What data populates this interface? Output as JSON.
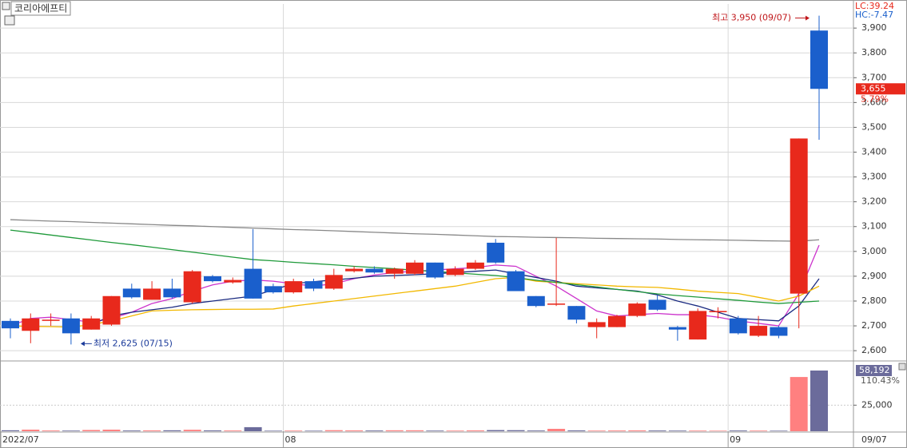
{
  "chart_data": {
    "type": "candlestick",
    "title": "코리아에프티",
    "categories": [
      "2022/07",
      null,
      null,
      null,
      null,
      null,
      null,
      null,
      null,
      null,
      null,
      null,
      null,
      null,
      "08",
      null,
      null,
      null,
      null,
      null,
      null,
      null,
      null,
      null,
      null,
      null,
      null,
      null,
      null,
      null,
      null,
      null,
      null,
      null,
      null,
      null,
      "09",
      null,
      null,
      null,
      null
    ],
    "end_date_label": "09/07",
    "open": [
      2720,
      2680,
      2720,
      2730,
      2685,
      2705,
      2850,
      2805,
      2850,
      2795,
      2900,
      2875,
      2930,
      2860,
      2835,
      2880,
      2850,
      2920,
      2930,
      2910,
      2910,
      2955,
      2905,
      2930,
      3035,
      2920,
      2820,
      2785,
      2780,
      2695,
      2695,
      2740,
      2805,
      2695,
      2645,
      2755,
      2730,
      2660,
      2695,
      2830,
      3890
    ],
    "high": [
      2730,
      2750,
      2750,
      2750,
      2740,
      2820,
      2870,
      2880,
      2890,
      2925,
      2905,
      2895,
      3090,
      2870,
      2890,
      2890,
      2930,
      2940,
      2940,
      2935,
      2965,
      2955,
      2940,
      2965,
      3050,
      2925,
      2820,
      3055,
      2780,
      2730,
      2745,
      2795,
      2825,
      2700,
      2770,
      2775,
      2740,
      2740,
      2700,
      3455,
      3950
    ],
    "low": [
      2650,
      2630,
      2700,
      2625,
      2685,
      2700,
      2810,
      2805,
      2810,
      2790,
      2875,
      2870,
      2810,
      2830,
      2830,
      2840,
      2845,
      2915,
      2910,
      2890,
      2905,
      2890,
      2900,
      2925,
      2950,
      2840,
      2775,
      2780,
      2710,
      2650,
      2695,
      2735,
      2760,
      2640,
      2645,
      2730,
      2665,
      2655,
      2650,
      2690,
      3450
    ],
    "close": [
      2690,
      2730,
      2725,
      2670,
      2730,
      2820,
      2815,
      2850,
      2815,
      2920,
      2880,
      2885,
      2810,
      2835,
      2880,
      2850,
      2905,
      2930,
      2915,
      2930,
      2955,
      2895,
      2930,
      2955,
      2955,
      2840,
      2780,
      2790,
      2725,
      2715,
      2740,
      2790,
      2765,
      2685,
      2760,
      2760,
      2670,
      2700,
      2660,
      3455,
      3655
    ],
    "up_color": "#e8291c",
    "down_color": "#1a5fcc",
    "ylim": [
      2565,
      3997
    ],
    "yticks": [
      {
        "value": 2600,
        "label": "2,600"
      },
      {
        "value": 2700,
        "label": "2,700"
      },
      {
        "value": 2800,
        "label": "2,800"
      },
      {
        "value": 2900,
        "label": "2,900"
      },
      {
        "value": 3000,
        "label": "3,000"
      },
      {
        "value": 3100,
        "label": "3,100"
      },
      {
        "value": 3200,
        "label": "3,200"
      },
      {
        "value": 3300,
        "label": "3,300"
      },
      {
        "value": 3400,
        "label": "3,400"
      },
      {
        "value": 3500,
        "label": "3,500"
      },
      {
        "value": 3600,
        "label": "3,600"
      },
      {
        "value": 3700,
        "label": "3,700"
      },
      {
        "value": 3800,
        "label": "3,800"
      },
      {
        "value": 3900,
        "label": "3,900"
      }
    ],
    "grid": true,
    "last_price_label": "3,655",
    "change_label": "5.79%",
    "lc_label": "LC:39.24",
    "hc_label": "HC:-7.47",
    "high_annotation": "최고 3,950 (09/07)",
    "low_annotation": "최저 2,625 (07/15)",
    "moving_averages": [
      {
        "color": "#cc33cc",
        "values": [
          2700,
          2730,
          2735,
          2725,
          2715,
          2730,
          2755,
          2790,
          2810,
          2840,
          2865,
          2880,
          2885,
          2880,
          2870,
          2860,
          2870,
          2890,
          2905,
          2915,
          2920,
          2925,
          2930,
          2935,
          2945,
          2940,
          2900,
          2860,
          2810,
          2760,
          2740,
          2745,
          2750,
          2745,
          2745,
          2735,
          2720,
          2710,
          2700,
          2830,
          3025
        ]
      },
      {
        "color": "#1a2a80",
        "values": [
          null,
          null,
          null,
          null,
          2705,
          2740,
          2755,
          2765,
          2775,
          2790,
          2800,
          2810,
          2820,
          2845,
          2870,
          2878,
          2885,
          2892,
          2900,
          2903,
          2906,
          2910,
          2915,
          2920,
          2925,
          2910,
          2895,
          2880,
          2860,
          2853,
          2847,
          2840,
          2825,
          2800,
          2780,
          2755,
          2730,
          2725,
          2720,
          2780,
          2890
        ]
      },
      {
        "color": "#f2b800",
        "values": [
          2700,
          2698,
          2697,
          2695,
          2705,
          2720,
          2740,
          2760,
          2763,
          2765,
          2766,
          2767,
          2767,
          2768,
          2780,
          2790,
          2800,
          2810,
          2820,
          2830,
          2840,
          2850,
          2860,
          2875,
          2890,
          2895,
          2880,
          2875,
          2870,
          2865,
          2860,
          2857,
          2855,
          2848,
          2840,
          2835,
          2830,
          2815,
          2800,
          2820,
          2860
        ]
      },
      {
        "color": "#1f9a3a",
        "values": [
          3086,
          3076,
          3066,
          3056,
          3046,
          3036,
          3027,
          3017,
          3007,
          2997,
          2987,
          2977,
          2967,
          2962,
          2956,
          2951,
          2946,
          2940,
          2935,
          2930,
          2924,
          2919,
          2914,
          2908,
          2903,
          2894,
          2884,
          2875,
          2866,
          2857,
          2847,
          2838,
          2829,
          2822,
          2816,
          2809,
          2803,
          2796,
          2790,
          2795,
          2800
        ]
      },
      {
        "color": "#888888",
        "values": [
          3128,
          3125,
          3122,
          3120,
          3117,
          3114,
          3111,
          3108,
          3105,
          3103,
          3100,
          3097,
          3094,
          3091,
          3088,
          3086,
          3083,
          3080,
          3077,
          3074,
          3071,
          3069,
          3066,
          3063,
          3060,
          3059,
          3057,
          3056,
          3055,
          3053,
          3052,
          3051,
          3050,
          3048,
          3047,
          3046,
          3045,
          3043,
          3042,
          3041,
          3047
        ]
      }
    ],
    "volume": {
      "values": [
        900,
        1500,
        700,
        600,
        1200,
        1500,
        700,
        800,
        900,
        1400,
        800,
        700,
        3900,
        500,
        600,
        500,
        1000,
        800,
        700,
        900,
        900,
        600,
        600,
        800,
        1100,
        1000,
        700,
        2300,
        800,
        600,
        700,
        800,
        700,
        600,
        600,
        500,
        700,
        600,
        500,
        52000,
        58192
      ],
      "up_color": "#ff8080",
      "down_color": "#6b6b9b",
      "ylim": [
        0,
        65850
      ],
      "yticks": [
        {
          "value": 25000,
          "label": "25,000"
        }
      ],
      "last_value_label": "58,192",
      "ratio_label": "110.43%"
    }
  }
}
